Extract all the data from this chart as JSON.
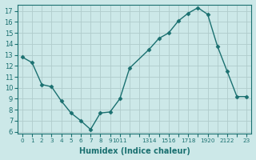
{
  "x": [
    0,
    1,
    2,
    3,
    4,
    5,
    6,
    7,
    8,
    9,
    10,
    11,
    13,
    14,
    15,
    16,
    17,
    18,
    19,
    20,
    21,
    22,
    23
  ],
  "y": [
    12.8,
    12.3,
    10.3,
    10.1,
    8.8,
    7.7,
    7.0,
    6.2,
    7.7,
    7.8,
    9.0,
    11.8,
    13.5,
    14.5,
    15.0,
    16.1,
    16.8,
    17.3,
    16.7,
    13.8,
    11.5,
    9.2,
    9.2
  ],
  "bg_color": "#cce8e8",
  "grid_color": "#b0cccc",
  "line_color": "#1a7070",
  "marker_color": "#1a7070",
  "xlabel": "Humidex (Indice chaleur)",
  "xlim": [
    -0.5,
    23.5
  ],
  "ylim": [
    5.8,
    17.6
  ],
  "yticks": [
    6,
    7,
    8,
    9,
    10,
    11,
    12,
    13,
    14,
    15,
    16,
    17
  ],
  "xtick_positions": [
    0,
    1,
    2,
    3,
    4,
    5,
    6,
    7,
    8,
    9,
    10,
    13,
    14,
    15,
    16,
    17,
    18,
    19,
    20,
    21,
    22,
    23
  ],
  "xtick_labels_special": {
    "0": "0",
    "1": "1",
    "2": "2",
    "3": "3",
    "4": "4",
    "5": "5",
    "6": "6",
    "7": "7",
    "8": "8",
    "9": "9",
    "10": "1011",
    "13": "1314",
    "14": "",
    "15": "1516",
    "16": "",
    "17": "1718",
    "18": "",
    "19": "1920",
    "20": "",
    "21": "2122",
    "22": "",
    "23": "23"
  }
}
